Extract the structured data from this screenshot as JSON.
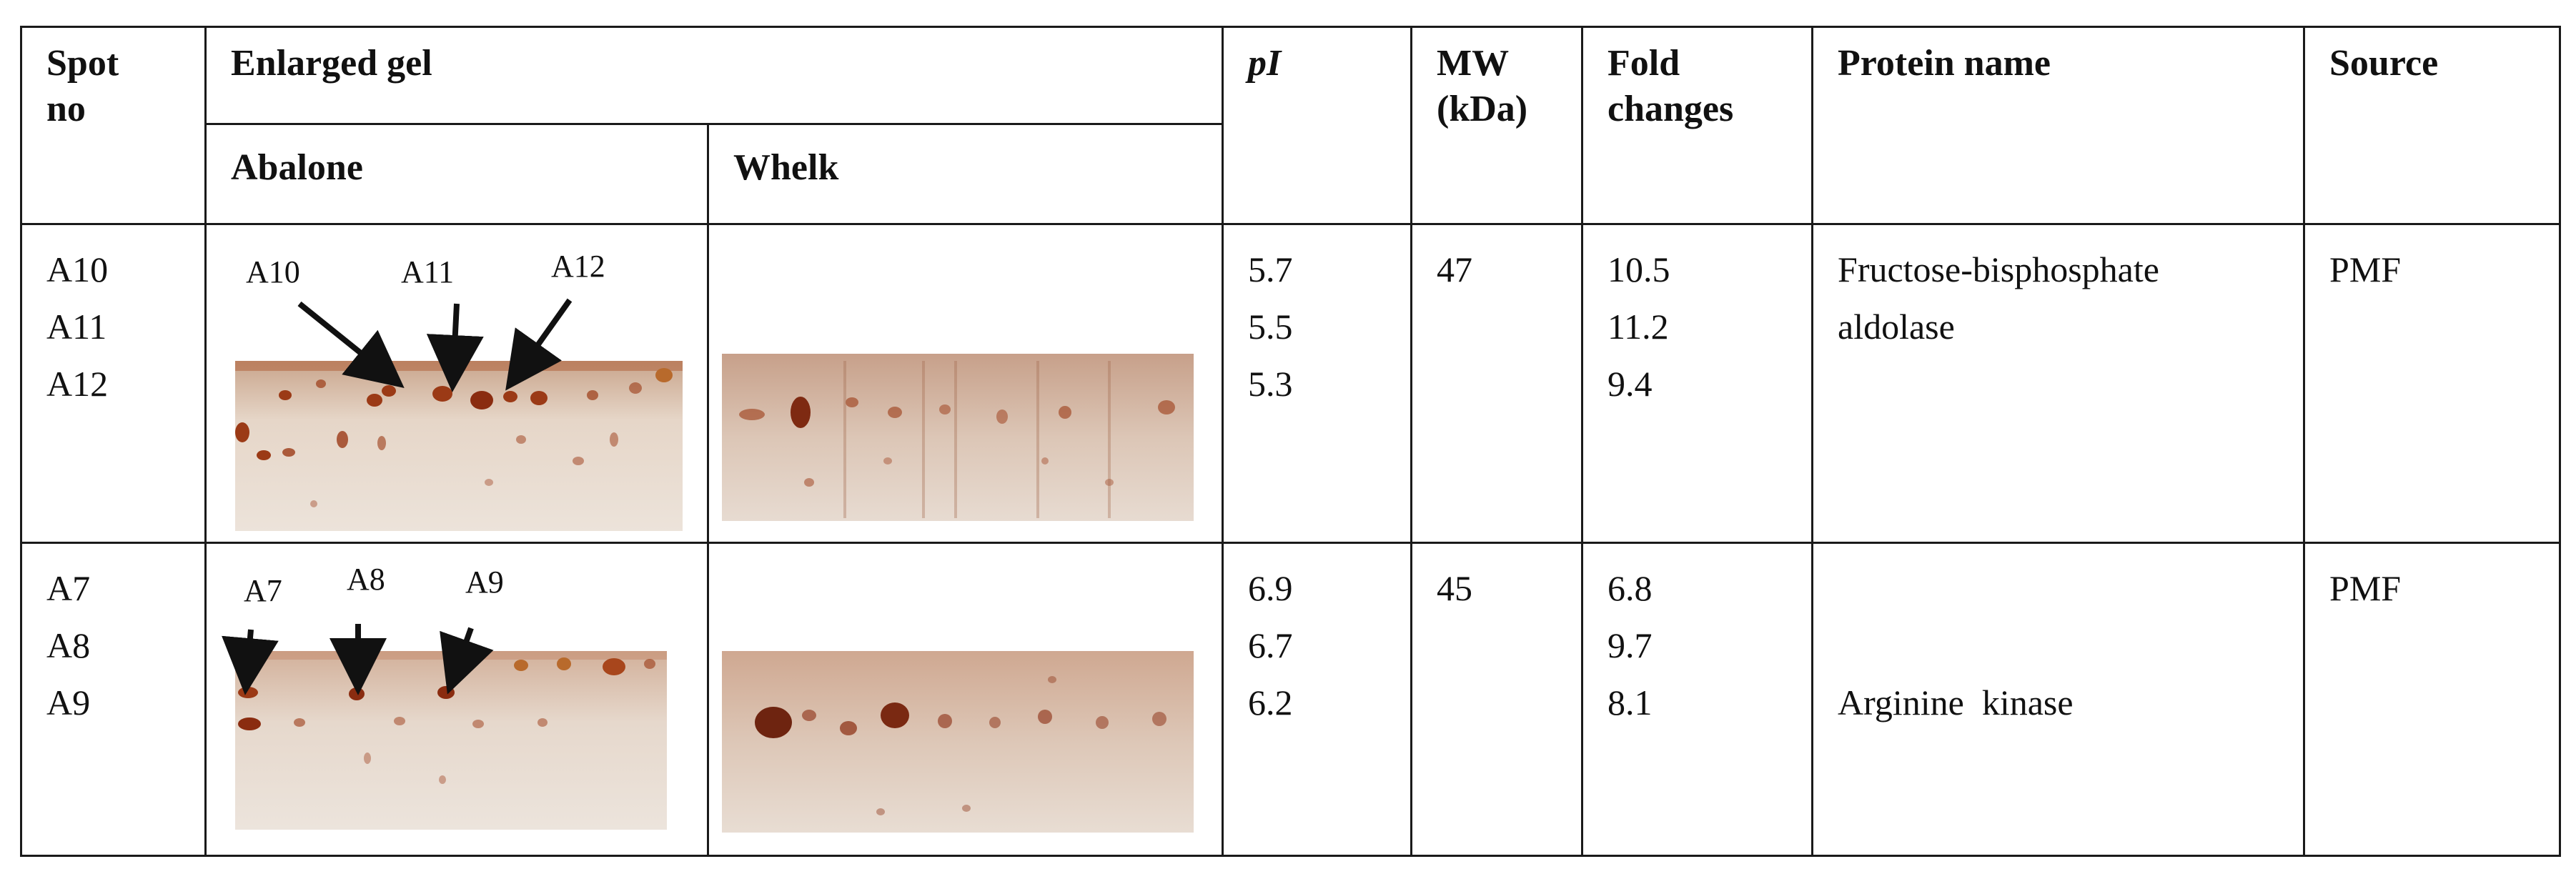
{
  "headers": {
    "spot_no": [
      "Spot",
      "no"
    ],
    "enlarged_gel": "Enlarged gel",
    "abalone": "Abalone",
    "whelk": "Whelk",
    "pi": "pI",
    "mw": [
      "MW",
      "(kDa)"
    ],
    "fold": [
      "Fold",
      "changes"
    ],
    "protein": "Protein name",
    "source": "Source"
  },
  "rows": [
    {
      "spots": [
        "A10",
        "A11",
        "A12"
      ],
      "pi": [
        "5.7",
        "5.5",
        "5.3"
      ],
      "mw": "47",
      "fold": [
        "10.5",
        "11.2",
        "9.4"
      ],
      "protein": [
        "Fructose-bisphosphate",
        "aldolase"
      ],
      "source": "PMF",
      "gel_labels": [
        "A10",
        "A11",
        "A12"
      ]
    },
    {
      "spots": [
        "A7",
        "A8",
        "A9"
      ],
      "pi": [
        "6.9",
        "6.7",
        "6.2"
      ],
      "mw": "45",
      "fold": [
        "6.8",
        "9.7",
        "8.1"
      ],
      "protein": [
        "Arginine  kinase"
      ],
      "source": "PMF",
      "gel_labels": [
        "A7",
        "A8",
        "A9"
      ]
    }
  ],
  "colors": {
    "gel_background": "#e8ddd4",
    "spot": "#8a2c10",
    "spot_light": "#c86a30",
    "arrow": "#111111",
    "border": "#1a1a1a"
  }
}
